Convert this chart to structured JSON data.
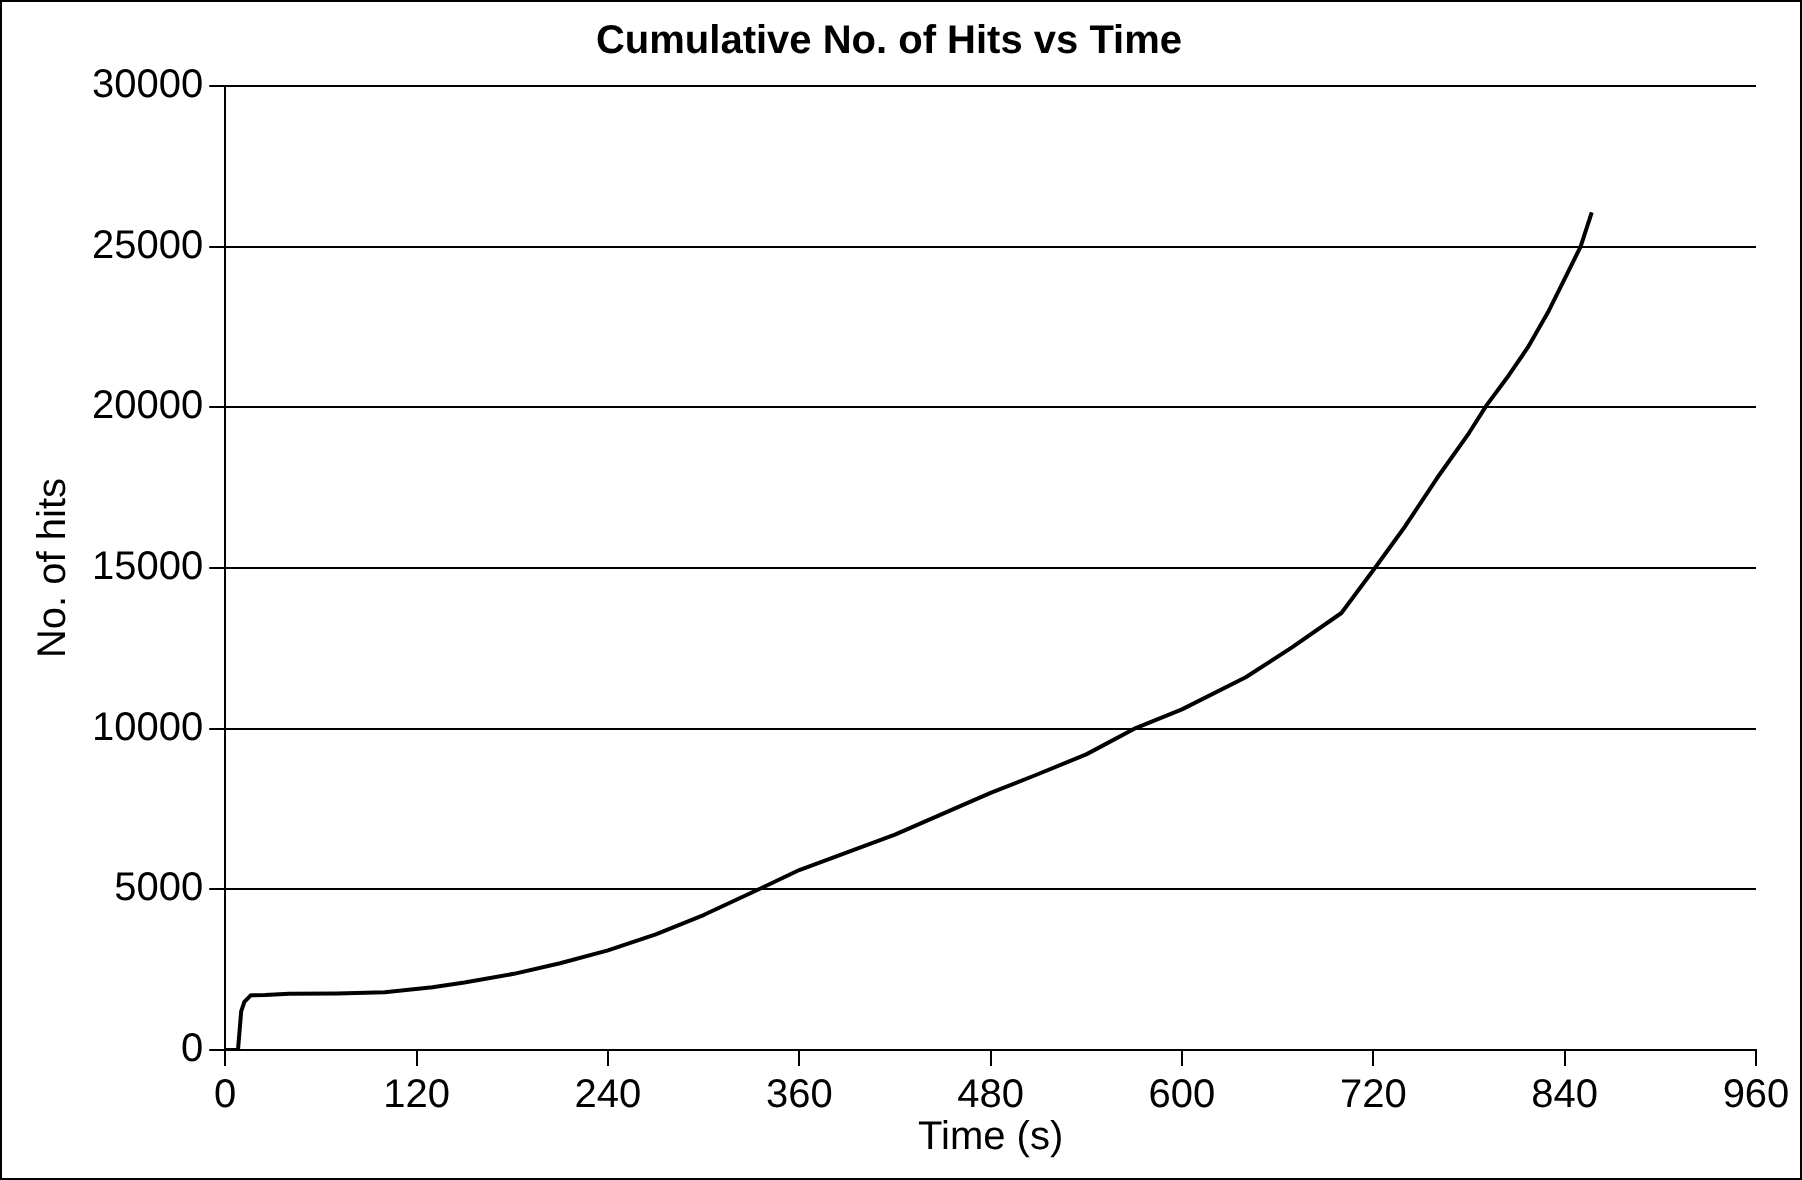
{
  "chart_data": {
    "type": "line",
    "title": "Cumulative No. of Hits vs Time",
    "xlabel": "Time (s)",
    "ylabel": "No. of hits",
    "x": [
      0,
      8,
      9,
      10,
      12,
      16,
      25,
      40,
      70,
      100,
      130,
      150,
      181,
      210,
      240,
      270,
      300,
      338,
      360,
      420,
      480,
      508,
      540,
      571,
      600,
      640,
      669,
      700,
      721,
      740,
      760,
      780,
      791,
      805,
      817,
      830,
      840,
      850,
      857
    ],
    "series": [
      {
        "color": "#000000",
        "values": [
          0,
          0,
          600,
          1200,
          1500,
          1700,
          1710,
          1750,
          1760,
          1800,
          1950,
          2100,
          2370,
          2700,
          3100,
          3600,
          4200,
          5080,
          5600,
          6700,
          8000,
          8550,
          9200,
          10020,
          10600,
          11600,
          12530,
          13600,
          15000,
          16300,
          17800,
          19200,
          20060,
          21000,
          21870,
          23000,
          24000,
          25000,
          26070
        ]
      }
    ],
    "xlim": [
      0,
      960
    ],
    "xticks": [
      0,
      120,
      240,
      360,
      480,
      600,
      720,
      840,
      960
    ],
    "ylim": [
      0,
      30000
    ],
    "yticks": [
      0,
      5000,
      10000,
      15000,
      20000,
      25000,
      30000
    ],
    "grid": "y",
    "legend": false,
    "marker": "none",
    "line_style": "solid"
  }
}
